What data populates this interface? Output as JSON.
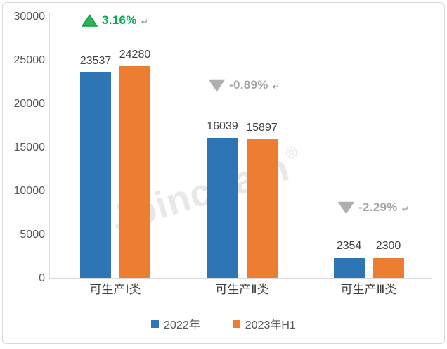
{
  "chart_data": {
    "type": "bar",
    "title": "",
    "categories": [
      "可生产Ⅰ类",
      "可生产Ⅱ类",
      "可生产Ⅲ类"
    ],
    "series": [
      {
        "name": "2022年",
        "color": "#2E75B6",
        "values": [
          23537,
          16039,
          2354
        ]
      },
      {
        "name": "2023年H1",
        "color": "#ED7D31",
        "values": [
          24280,
          15897,
          2300
        ]
      }
    ],
    "y_ticks": [
      0,
      5000,
      10000,
      15000,
      20000,
      25000,
      30000
    ],
    "ylim": [
      0,
      30000
    ],
    "grid": false,
    "legend_position": "bottom",
    "annotations": [
      {
        "label": "3.16%",
        "direction": "up",
        "triangle_fill": "#2FB356",
        "triangle_border": "#0E9E48",
        "text_color": "#00B050",
        "return_mark": "↵"
      },
      {
        "label": "-0.89%",
        "direction": "down",
        "triangle_fill": "#AFAFAF",
        "triangle_border": "#AFAFAF",
        "text_color": "#A6A6A6",
        "return_mark": "↵"
      },
      {
        "label": "-2.29%",
        "direction": "down",
        "triangle_fill": "#AFAFAF",
        "triangle_border": "#AFAFAF",
        "text_color": "#A6A6A6",
        "return_mark": "↵"
      }
    ],
    "watermark": {
      "text": "Joinchain",
      "mark": "®"
    },
    "axis_color": "#D9D9D9",
    "tick_label_color": "#595959",
    "data_label_color": "#404040"
  }
}
